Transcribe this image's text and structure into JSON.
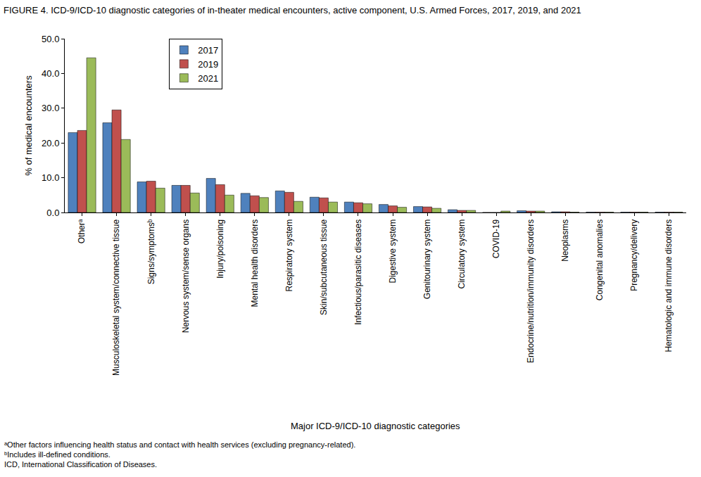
{
  "chart_data": {
    "type": "bar",
    "title": "FIGURE 4. ICD-9/ICD-10 diagnostic categories of in-theater medical encounters, active component, U.S. Armed Forces, 2017, 2019, and 2021",
    "x_label": "Major ICD-9/ICD-10 diagnostic categories",
    "y_label": "% of medical encounters",
    "categories": [
      "Otherᵃ",
      "Musculoskeletal system/connective tissue",
      "Signs/symptomsᵇ",
      "Nervous system/sense organs",
      "Injury/poisoning",
      "Mental health disorders",
      "Respiratory system",
      "Skin/subcutaneous tissue",
      "Infectious/parasitic diseases",
      "Digestive system",
      "Genitourinary system",
      "Circulatory system",
      "COVID-19",
      "Endocrine/nutrition/immunity disorders",
      "Neoplasms",
      "Congenital anomalies",
      "Pregnancy/delivery",
      "Hematologic and immune disorders"
    ],
    "series": [
      {
        "name": "2017",
        "color": "#4f81bd",
        "values": [
          23.0,
          25.8,
          8.8,
          7.8,
          9.8,
          5.5,
          6.2,
          4.4,
          3.0,
          2.3,
          1.7,
          0.8,
          0.0,
          0.5,
          0.2,
          0.1,
          0.1,
          0.1
        ]
      },
      {
        "name": "2019",
        "color": "#c0504d",
        "values": [
          23.6,
          29.5,
          9.0,
          7.8,
          8.0,
          4.8,
          5.8,
          4.2,
          2.8,
          1.9,
          1.6,
          0.6,
          0.0,
          0.4,
          0.2,
          0.1,
          0.1,
          0.1
        ]
      },
      {
        "name": "2021",
        "color": "#9bbb59",
        "values": [
          44.5,
          21.0,
          7.0,
          5.6,
          5.0,
          4.3,
          3.2,
          3.0,
          2.5,
          1.5,
          1.2,
          0.6,
          0.4,
          0.4,
          0.1,
          0.1,
          0.1,
          0.1
        ]
      }
    ],
    "ylim": [
      0,
      50
    ],
    "yticks": [
      {
        "value": 0,
        "label": "0.0"
      },
      {
        "value": 10,
        "label": "10.0"
      },
      {
        "value": 20,
        "label": "20.0"
      },
      {
        "value": 30,
        "label": "30.0"
      },
      {
        "value": 40,
        "label": "40.0"
      },
      {
        "value": 50,
        "label": "50.0"
      }
    ],
    "grid": false,
    "legend": "top-left",
    "notes": [
      "ᵃOther factors influencing health status and contact with health services (excluding pregnancy-related).",
      "ᵇIncludes ill-defined conditions.",
      "ICD, International Classification of Diseases."
    ]
  }
}
